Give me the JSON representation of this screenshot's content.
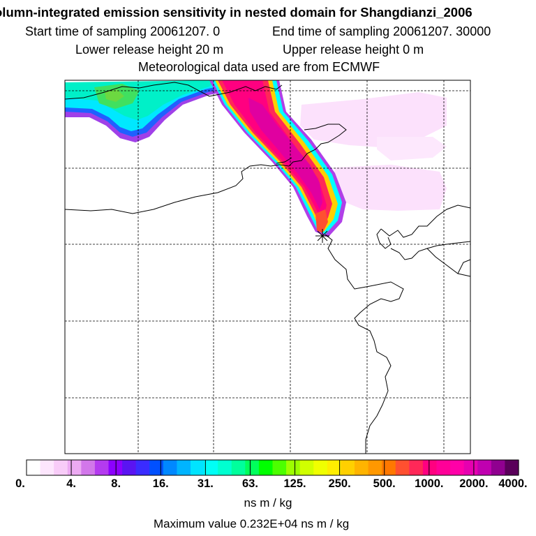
{
  "title": "olumn-integrated emission sensitivity in nested domain for Shangdianzi_2006",
  "sampling": {
    "start_label": "Start time of sampling 20061207.     0",
    "end_label": "End time of sampling 20061207. 30000"
  },
  "release": {
    "lower_label": "Lower release height   20 m",
    "upper_label": "Upper release height    0 m"
  },
  "met_label": "Meteorological data used are from ECMWF",
  "colorbar": {
    "labels": [
      "0.",
      "4.",
      "8.",
      "16.",
      "31.",
      "63.",
      "125.",
      "250.",
      "500.",
      "1000.",
      "2000.",
      "4000."
    ],
    "colors": [
      "#ffffff",
      "#fde6fd",
      "#f8ccf8",
      "#ecaaf2",
      "#d277ea",
      "#b43bef",
      "#8c00ff",
      "#5a14f2",
      "#3a2cff",
      "#0050ff",
      "#0088ff",
      "#00b4ff",
      "#00e4ff",
      "#00fff6",
      "#00ffd0",
      "#00ff9c",
      "#00ff5c",
      "#00ff00",
      "#4cff00",
      "#9cff00",
      "#d0ff00",
      "#f0ff00",
      "#ffee00",
      "#ffd000",
      "#ffb400",
      "#ff9800",
      "#ff7800",
      "#ff5030",
      "#ff2858",
      "#ff0080",
      "#ff0098",
      "#ff00a8",
      "#e600b0",
      "#c000b0",
      "#900090",
      "#5a005a"
    ]
  },
  "units": "ns m / kg",
  "max_value": "Maximum value  0.232E+04 ns m / kg",
  "colors": {
    "plume_core": "#ff0080",
    "plume_mid": "#ff2858",
    "plume_edge": "#00ffff",
    "faint_pink": "#fbd8fb",
    "coastline": "#000000",
    "grid": "#000000"
  },
  "icons": {
    "station_marker": "asterisk-marker"
  }
}
